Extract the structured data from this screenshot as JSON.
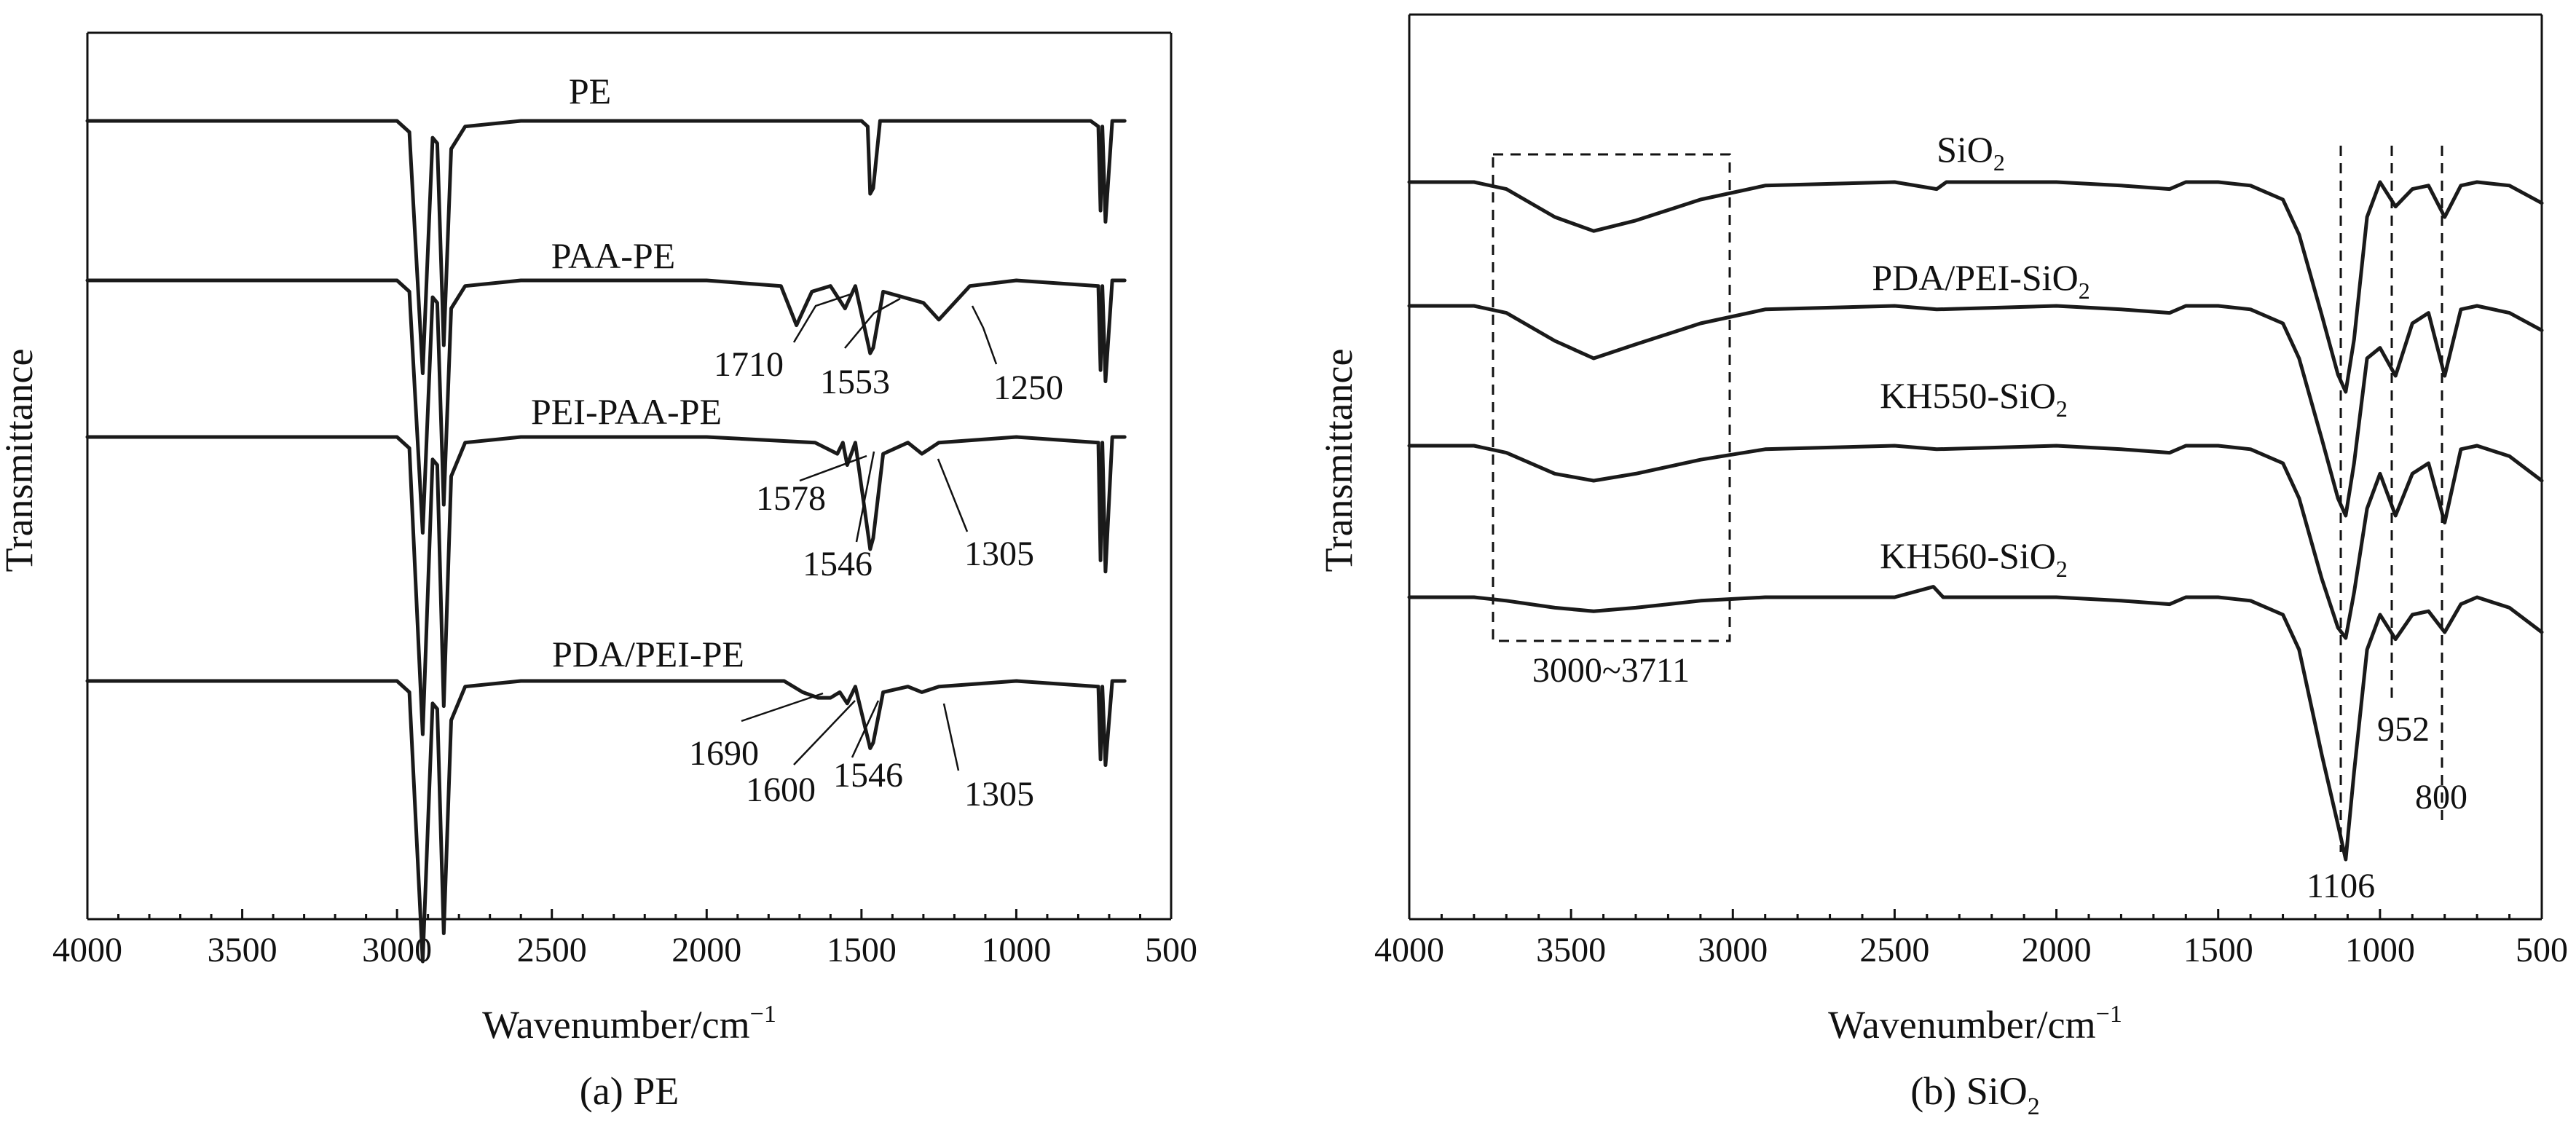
{
  "chart_data": [
    {
      "type": "line",
      "caption": "(a) PE",
      "xlabel": "Wavenumber/cm",
      "xlabel_sup": "−1",
      "ylabel": "Transmittance",
      "xlim": [
        4000,
        500
      ],
      "xticks": [
        4000,
        3500,
        3000,
        2500,
        2000,
        1500,
        1000,
        500
      ],
      "x_reversed": true,
      "yticks_shown": false,
      "series": [
        {
          "name": "PE",
          "baseline": 1.0,
          "x": [
            4000,
            3000,
            2960,
            2917,
            2885,
            2870,
            2849,
            2825,
            2780,
            2600,
            2000,
            1500,
            1480,
            1472,
            1462,
            1440,
            1000,
            760,
            735,
            728,
            722,
            712,
            690,
            650
          ],
          "y": [
            1.0,
            1.0,
            0.98,
            0.55,
            0.97,
            0.96,
            0.6,
            0.95,
            0.99,
            1.0,
            1.0,
            1.0,
            0.99,
            0.87,
            0.88,
            1.0,
            1.0,
            1.0,
            0.99,
            0.84,
            0.99,
            0.82,
            1.0,
            1.0
          ]
        },
        {
          "name": "PAA-PE",
          "baseline": 1.0,
          "x": [
            4000,
            3000,
            2960,
            2917,
            2885,
            2870,
            2849,
            2825,
            2780,
            2600,
            2000,
            1760,
            1710,
            1660,
            1600,
            1553,
            1520,
            1472,
            1462,
            1430,
            1300,
            1250,
            1200,
            1150,
            1000,
            735,
            728,
            722,
            712,
            690,
            650
          ],
          "y": [
            1.0,
            1.0,
            0.98,
            0.55,
            0.97,
            0.96,
            0.6,
            0.95,
            0.99,
            1.0,
            1.0,
            0.99,
            0.92,
            0.98,
            0.99,
            0.95,
            0.99,
            0.87,
            0.88,
            0.98,
            0.96,
            0.93,
            0.96,
            0.99,
            1.0,
            0.99,
            0.84,
            0.99,
            0.82,
            1.0,
            1.0
          ]
        },
        {
          "name": "PEI-PAA-PE",
          "baseline": 1.0,
          "x": [
            4000,
            3000,
            2960,
            2917,
            2885,
            2870,
            2849,
            2825,
            2780,
            2600,
            2000,
            1650,
            1578,
            1560,
            1546,
            1520,
            1472,
            1462,
            1430,
            1350,
            1305,
            1250,
            1000,
            735,
            728,
            722,
            712,
            690,
            650
          ],
          "y": [
            1.0,
            1.0,
            0.98,
            0.47,
            0.96,
            0.95,
            0.52,
            0.93,
            0.99,
            1.0,
            1.0,
            0.99,
            0.97,
            0.99,
            0.95,
            0.99,
            0.8,
            0.82,
            0.97,
            0.99,
            0.97,
            0.99,
            1.0,
            0.99,
            0.78,
            0.99,
            0.76,
            1.0,
            1.0
          ]
        },
        {
          "name": "PDA/PEI-PE",
          "baseline": 1.0,
          "x": [
            4000,
            3000,
            2960,
            2917,
            2885,
            2870,
            2849,
            2825,
            2780,
            2600,
            2000,
            1750,
            1690,
            1640,
            1600,
            1570,
            1546,
            1520,
            1472,
            1462,
            1430,
            1350,
            1305,
            1250,
            1000,
            735,
            728,
            722,
            712,
            690,
            650
          ],
          "y": [
            1.0,
            1.0,
            0.98,
            0.5,
            0.96,
            0.95,
            0.55,
            0.93,
            0.99,
            1.0,
            1.0,
            1.0,
            0.98,
            0.97,
            0.97,
            0.98,
            0.96,
            0.99,
            0.88,
            0.89,
            0.98,
            0.99,
            0.98,
            0.99,
            1.0,
            0.99,
            0.86,
            0.99,
            0.85,
            1.0,
            1.0
          ]
        }
      ],
      "annotations": [
        "1710",
        "1553",
        "1250",
        "1578",
        "1546",
        "1305",
        "1690",
        "1600",
        "1546",
        "1305"
      ]
    },
    {
      "type": "line",
      "caption": "(b) SiO",
      "caption_sub": "2",
      "xlabel": "Wavenumber/cm",
      "xlabel_sup": "−1",
      "ylabel": "Transmittance",
      "xlim": [
        4000,
        500
      ],
      "xticks": [
        4000,
        3500,
        3000,
        2500,
        2000,
        1500,
        1000,
        500
      ],
      "x_reversed": true,
      "yticks_shown": false,
      "highlight_box": {
        "x_range": [
          3711,
          3000
        ],
        "label": "3000~3711"
      },
      "marker_lines": [
        1106,
        952,
        800
      ],
      "series": [
        {
          "name": "SiO",
          "name_sub": "2",
          "baseline": 1.0,
          "x": [
            4000,
            3800,
            3700,
            3550,
            3430,
            3300,
            3100,
            2900,
            2500,
            2370,
            2340,
            2000,
            1800,
            1650,
            1600,
            1500,
            1400,
            1300,
            1250,
            1180,
            1130,
            1106,
            1080,
            1040,
            1000,
            952,
            900,
            850,
            800,
            750,
            700,
            600,
            500
          ],
          "y": [
            1.0,
            1.0,
            0.98,
            0.9,
            0.86,
            0.89,
            0.95,
            0.99,
            1.0,
            0.98,
            1.0,
            1.0,
            0.99,
            0.98,
            1.0,
            1.0,
            0.99,
            0.95,
            0.85,
            0.62,
            0.45,
            0.4,
            0.55,
            0.9,
            1.0,
            0.93,
            0.98,
            0.99,
            0.9,
            0.99,
            1.0,
            0.99,
            0.94
          ]
        },
        {
          "name": "PDA/PEI-SiO",
          "name_sub": "2",
          "baseline": 1.0,
          "x": [
            4000,
            3800,
            3700,
            3550,
            3430,
            3300,
            3100,
            2900,
            2500,
            2370,
            2000,
            1800,
            1650,
            1600,
            1500,
            1400,
            1300,
            1250,
            1180,
            1130,
            1106,
            1080,
            1040,
            1000,
            952,
            900,
            850,
            800,
            750,
            700,
            600,
            500
          ],
          "y": [
            1.0,
            1.0,
            0.98,
            0.9,
            0.85,
            0.89,
            0.95,
            0.99,
            1.0,
            0.99,
            1.0,
            0.99,
            0.98,
            1.0,
            1.0,
            0.99,
            0.95,
            0.85,
            0.62,
            0.45,
            0.4,
            0.55,
            0.85,
            0.88,
            0.8,
            0.95,
            0.98,
            0.8,
            0.99,
            1.0,
            0.98,
            0.93
          ]
        },
        {
          "name": "KH550-SiO",
          "name_sub": "2",
          "baseline": 1.0,
          "x": [
            4000,
            3800,
            3700,
            3550,
            3430,
            3300,
            3100,
            2900,
            2500,
            2370,
            2000,
            1800,
            1650,
            1600,
            1500,
            1400,
            1300,
            1250,
            1180,
            1130,
            1106,
            1080,
            1040,
            1000,
            952,
            900,
            850,
            800,
            750,
            700,
            600,
            500
          ],
          "y": [
            1.0,
            1.0,
            0.98,
            0.92,
            0.9,
            0.92,
            0.96,
            0.99,
            1.0,
            0.99,
            1.0,
            0.99,
            0.98,
            1.0,
            1.0,
            0.99,
            0.95,
            0.85,
            0.62,
            0.48,
            0.45,
            0.58,
            0.82,
            0.92,
            0.8,
            0.92,
            0.95,
            0.78,
            0.99,
            1.0,
            0.97,
            0.9
          ]
        },
        {
          "name": "KH560-SiO",
          "name_sub": "2",
          "baseline": 1.0,
          "x": [
            4000,
            3800,
            3700,
            3550,
            3430,
            3300,
            3100,
            2900,
            2500,
            2380,
            2350,
            2000,
            1800,
            1650,
            1600,
            1500,
            1400,
            1300,
            1250,
            1180,
            1130,
            1106,
            1080,
            1040,
            1000,
            952,
            900,
            850,
            800,
            750,
            700,
            600,
            500
          ],
          "y": [
            1.0,
            1.0,
            0.99,
            0.97,
            0.96,
            0.97,
            0.99,
            1.0,
            1.0,
            1.03,
            1.0,
            1.0,
            0.99,
            0.98,
            1.0,
            1.0,
            0.99,
            0.95,
            0.85,
            0.55,
            0.35,
            0.25,
            0.5,
            0.85,
            0.95,
            0.88,
            0.95,
            0.96,
            0.9,
            0.98,
            1.0,
            0.97,
            0.9
          ]
        }
      ],
      "annotations": [
        "952",
        "800",
        "1106"
      ]
    }
  ]
}
